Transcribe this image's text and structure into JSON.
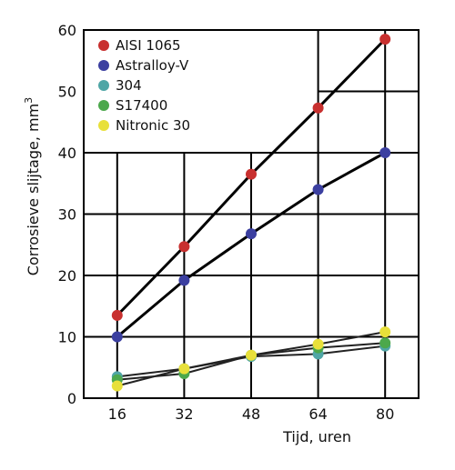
{
  "chart_data": {
    "type": "line",
    "x": [
      16,
      32,
      48,
      64,
      80
    ],
    "x_tick_labels": [
      "16",
      "32",
      "48",
      "64",
      "80"
    ],
    "y_tick_labels": [
      "0",
      "10",
      "20",
      "30",
      "40",
      "50",
      "60"
    ],
    "y_ticks": [
      0,
      10,
      20,
      30,
      40,
      50,
      60
    ],
    "xlim": [
      8,
      88
    ],
    "ylim": [
      0,
      60
    ],
    "xlabel": "Tijd, uren",
    "ylabel": "Corrosieve slijtage, mm",
    "ylabel_superscript": "3",
    "grid": true,
    "legend_position": "top-left",
    "series": [
      {
        "name": "AISI 1065",
        "color": "#c8302f",
        "values": [
          13.5,
          24.7,
          36.5,
          47.3,
          58.5
        ]
      },
      {
        "name": "Astralloy-V",
        "color": "#3b3fa0",
        "values": [
          10.0,
          19.2,
          26.8,
          34.0,
          40.0
        ]
      },
      {
        "name": "304",
        "color": "#4fa6a6",
        "values": [
          3.5,
          4.8,
          6.8,
          7.2,
          8.5
        ]
      },
      {
        "name": "S17400",
        "color": "#4ca84c",
        "values": [
          3.0,
          4.0,
          7.0,
          8.2,
          9.0
        ]
      },
      {
        "name": "Nitronic 30",
        "color": "#e8e03a",
        "values": [
          2.0,
          4.8,
          7.0,
          8.8,
          10.8
        ]
      }
    ]
  }
}
